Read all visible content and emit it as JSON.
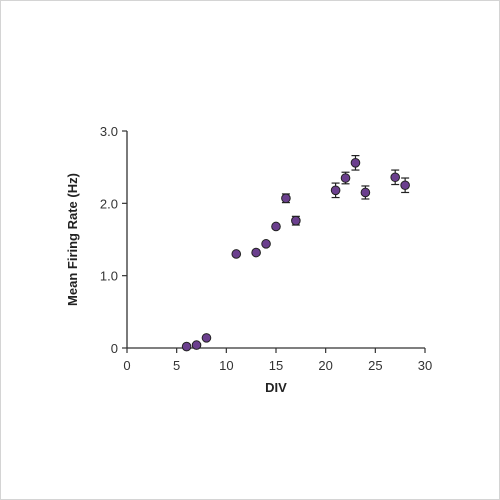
{
  "chart_data": {
    "type": "scatter",
    "xlabel": "DIV",
    "ylabel": "Mean Firing Rate (Hz)",
    "xlim": [
      0,
      30
    ],
    "ylim": [
      0,
      3.0
    ],
    "x_ticks": [
      0,
      5,
      10,
      15,
      20,
      25,
      30
    ],
    "x_tick_labels": [
      "0",
      "5",
      "10",
      "15",
      "20",
      "25",
      "30"
    ],
    "y_ticks": [
      0,
      1.0,
      2.0,
      3.0
    ],
    "y_tick_labels": [
      "0",
      "1.0",
      "2.0",
      "3.0"
    ],
    "grid": false,
    "marker_color": "#6b3f8e",
    "marker_edge_color": "#222222",
    "points": [
      {
        "x": 6,
        "y": 0.02,
        "err": 0.02
      },
      {
        "x": 7,
        "y": 0.04,
        "err": 0.02
      },
      {
        "x": 8,
        "y": 0.14,
        "err": 0.03
      },
      {
        "x": 11,
        "y": 1.3,
        "err": 0.03
      },
      {
        "x": 13,
        "y": 1.32,
        "err": 0.03
      },
      {
        "x": 14,
        "y": 1.44,
        "err": 0.03
      },
      {
        "x": 15,
        "y": 1.68,
        "err": 0.03
      },
      {
        "x": 16,
        "y": 2.07,
        "err": 0.06
      },
      {
        "x": 17,
        "y": 1.76,
        "err": 0.06
      },
      {
        "x": 21,
        "y": 2.18,
        "err": 0.1
      },
      {
        "x": 22,
        "y": 2.35,
        "err": 0.08
      },
      {
        "x": 23,
        "y": 2.56,
        "err": 0.1
      },
      {
        "x": 24,
        "y": 2.15,
        "err": 0.09
      },
      {
        "x": 27,
        "y": 2.36,
        "err": 0.1
      },
      {
        "x": 28,
        "y": 2.25,
        "err": 0.1
      }
    ]
  }
}
